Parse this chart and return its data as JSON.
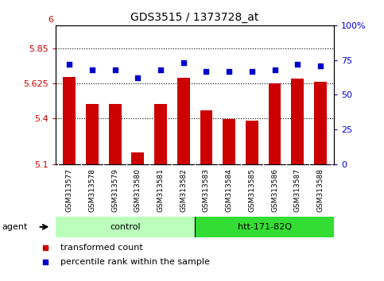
{
  "title": "GDS3515 / 1373728_at",
  "categories": [
    "GSM313577",
    "GSM313578",
    "GSM313579",
    "GSM313580",
    "GSM313581",
    "GSM313582",
    "GSM313583",
    "GSM313584",
    "GSM313585",
    "GSM313586",
    "GSM313587",
    "GSM313588"
  ],
  "bar_values": [
    5.665,
    5.49,
    5.49,
    5.175,
    5.49,
    5.66,
    5.45,
    5.395,
    5.385,
    5.625,
    5.655,
    5.635
  ],
  "scatter_values": [
    72,
    68,
    68,
    62,
    68,
    73,
    67,
    67,
    67,
    68,
    72,
    71
  ],
  "bar_color": "#cc0000",
  "scatter_color": "#0000cc",
  "ylim_left": [
    5.1,
    6.0
  ],
  "ylim_right": [
    0,
    100
  ],
  "yticks_left": [
    5.1,
    5.4,
    5.625,
    5.85
  ],
  "ytick_labels_left": [
    "5.1",
    "5.4",
    "5.625",
    "5.85"
  ],
  "yticks_right": [
    0,
    25,
    50,
    75,
    100
  ],
  "ytick_labels_right": [
    "0",
    "25",
    "50",
    "75",
    "100%"
  ],
  "hlines": [
    5.85,
    5.625,
    5.4
  ],
  "n_control": 6,
  "n_htt": 6,
  "group_control_label": "control",
  "group_htt_label": "htt-171-82Q",
  "agent_label": "agent",
  "legend_bar_label": "transformed count",
  "legend_scatter_label": "percentile rank within the sample",
  "control_bg": "#bbffbb",
  "htt_bg": "#33dd33",
  "tick_area_bg": "#cccccc",
  "bar_bottom": 5.1,
  "bar_width": 0.55,
  "top_ytick": "6"
}
